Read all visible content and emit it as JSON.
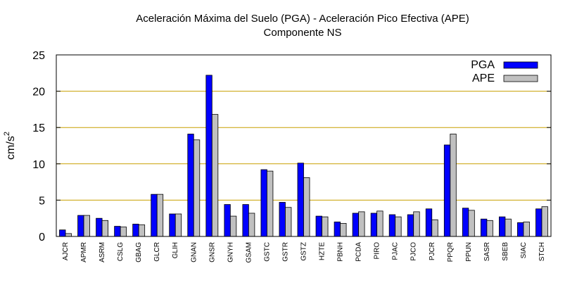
{
  "chart_data": {
    "type": "bar",
    "title": "Aceleración Máxima del Suelo (PGA) -  Aceleración Pico Efectiva (APE)",
    "subtitle": "Componente NS",
    "xlabel": "",
    "ylabel": "cm/s",
    "ylabel_sup": "2",
    "ylim": [
      0,
      25
    ],
    "yticks": [
      0,
      5,
      10,
      15,
      20,
      25
    ],
    "grid": "horizontal",
    "legend_position": "top-right",
    "categories": [
      "AJCR",
      "APMR",
      "ASRM",
      "CSLG",
      "GBAG",
      "GLCR",
      "GLIH",
      "GNAN",
      "GNSR",
      "GNYH",
      "GSAM",
      "GSTC",
      "GSTR",
      "GSTZ",
      "HZTE",
      "PBNH",
      "PCDA",
      "PIRO",
      "PJAC",
      "PJCO",
      "PJCR",
      "PPQR",
      "PPUN",
      "SASR",
      "SBEB",
      "SIAC",
      "STCH"
    ],
    "series": [
      {
        "name": "PGA",
        "color": "#0000ff",
        "values": [
          0.9,
          2.9,
          2.5,
          1.4,
          1.7,
          5.8,
          3.1,
          14.1,
          22.2,
          4.4,
          4.4,
          9.2,
          4.7,
          10.1,
          2.8,
          2.0,
          3.2,
          3.2,
          3.0,
          3.0,
          3.8,
          12.6,
          3.9,
          2.4,
          2.7,
          1.9,
          3.8
        ]
      },
      {
        "name": "APE",
        "color": "#c0c0c0",
        "values": [
          0.4,
          2.9,
          2.2,
          1.3,
          1.6,
          5.8,
          3.1,
          13.3,
          16.8,
          2.8,
          3.2,
          9.0,
          4.0,
          8.1,
          2.7,
          1.8,
          3.4,
          3.5,
          2.7,
          3.4,
          2.3,
          14.1,
          3.6,
          2.2,
          2.4,
          2.0,
          4.1
        ]
      }
    ],
    "gridline_color": "#c8a000",
    "bar_stroke": "#000000"
  }
}
